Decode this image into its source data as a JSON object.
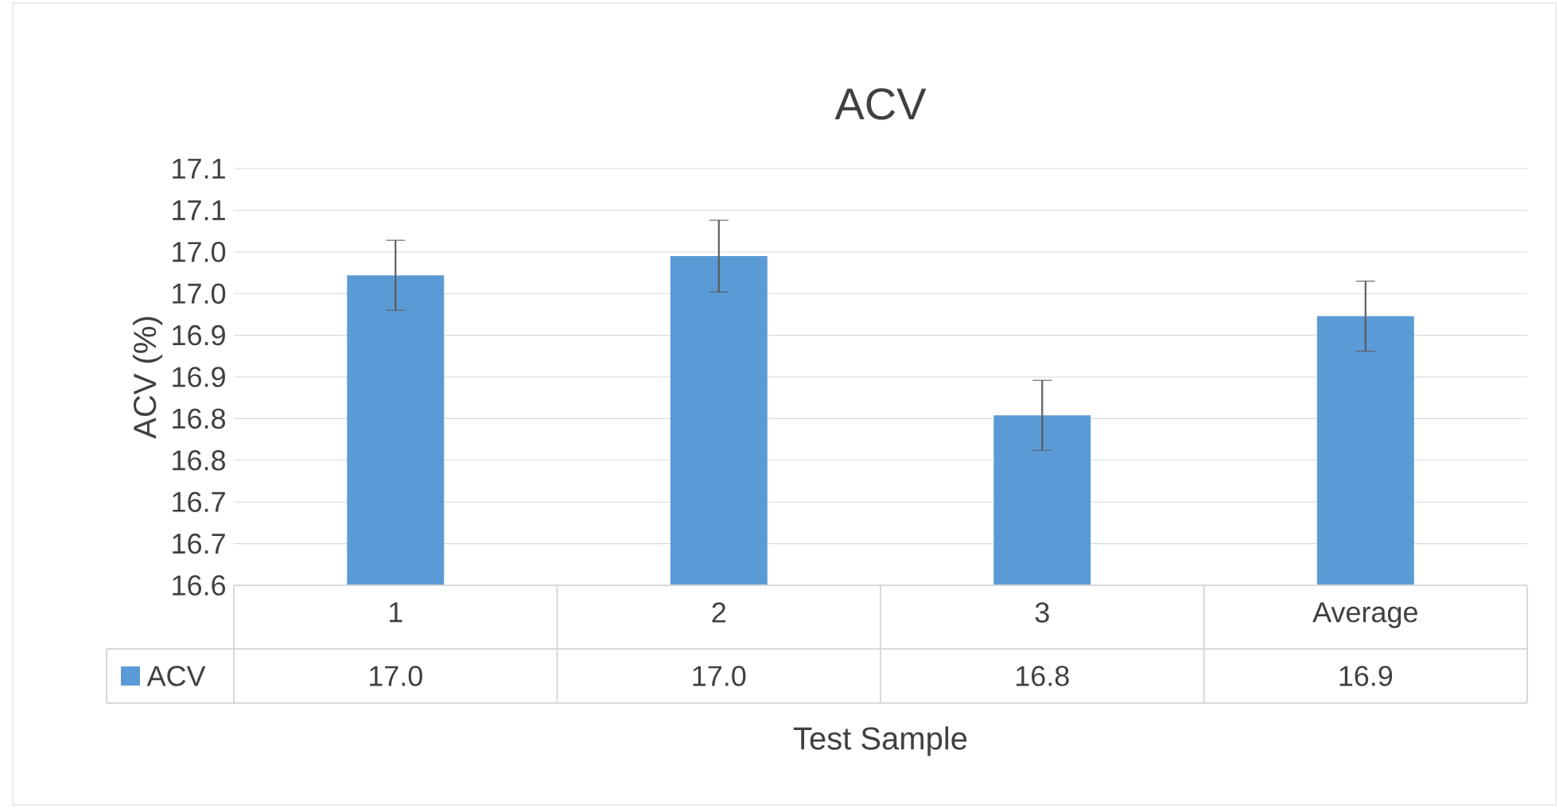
{
  "chart_data": {
    "type": "bar",
    "title": "ACV",
    "xlabel": "Test Sample",
    "ylabel": "ACV (%)",
    "categories": [
      "1",
      "2",
      "3",
      "Average"
    ],
    "series": [
      {
        "name": "ACV",
        "color": "#5b9bd5",
        "values": [
          16.972,
          16.995,
          16.804,
          16.923
        ],
        "errors": [
          0.042,
          0.043,
          0.042,
          0.042
        ],
        "value_labels": [
          "17.0",
          "17.0",
          "16.8",
          "16.9"
        ]
      }
    ],
    "ylim": [
      16.6,
      17.1
    ],
    "yticks": [
      {
        "value": 16.6,
        "label": "16.6"
      },
      {
        "value": 16.65,
        "label": "16.7"
      },
      {
        "value": 16.7,
        "label": "16.7"
      },
      {
        "value": 16.75,
        "label": "16.8"
      },
      {
        "value": 16.8,
        "label": "16.8"
      },
      {
        "value": 16.85,
        "label": "16.9"
      },
      {
        "value": 16.9,
        "label": "16.9"
      },
      {
        "value": 16.95,
        "label": "17.0"
      },
      {
        "value": 17.0,
        "label": "17.0"
      },
      {
        "value": 17.05,
        "label": "17.1"
      },
      {
        "value": 17.1,
        "label": "17.1"
      }
    ],
    "grid": "y",
    "legend": "bottom"
  }
}
